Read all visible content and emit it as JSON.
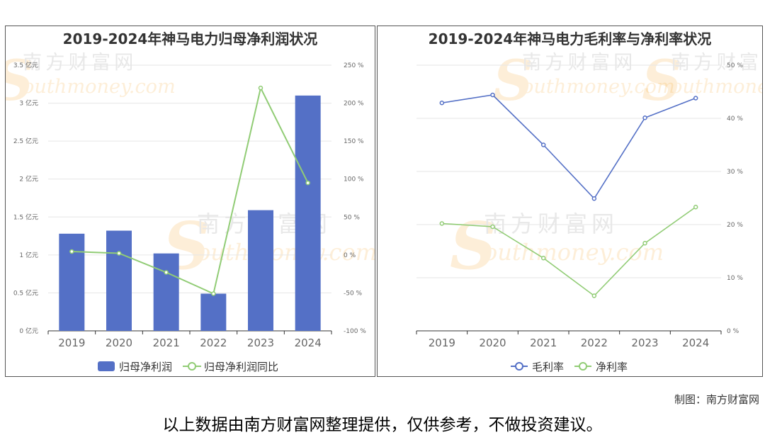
{
  "colors": {
    "blue": "#5470c6",
    "green": "#91cc75",
    "grid": "#e6e6e6",
    "axis": "#333333",
    "text": "#666666"
  },
  "watermark": {
    "cn": "南方财富网",
    "en": "outhmoney.com"
  },
  "credit": "制图：南方财富网",
  "disclaimer": "以上数据由南方财富网整理提供，仅供参考，不做投资建议。",
  "chart_data": [
    {
      "type": "bar",
      "title": "2019-2024年神马电力归母净利润状况",
      "categories": [
        "2019",
        "2020",
        "2021",
        "2022",
        "2023",
        "2024"
      ],
      "series": [
        {
          "name": "归母净利润",
          "type": "bar",
          "axis": "left",
          "values": [
            1.28,
            1.32,
            1.02,
            0.49,
            1.59,
            3.1
          ]
        },
        {
          "name": "归母净利润同比",
          "type": "line",
          "axis": "right",
          "values": [
            4.5,
            2.2,
            -23,
            -51,
            220,
            95
          ]
        }
      ],
      "y_left": {
        "min": 0,
        "max": 3.5,
        "step": 0.5,
        "unit": "亿元",
        "ticks": [
          "0 亿元",
          "0.5 亿元",
          "1 亿元",
          "1.5 亿元",
          "2 亿元",
          "2.5 亿元",
          "3 亿元",
          "3.5 亿元"
        ]
      },
      "y_right": {
        "min": -100,
        "max": 250,
        "step": 50,
        "unit": "%",
        "ticks": [
          "-100 %",
          "-50 %",
          "0 %",
          "50 %",
          "100 %",
          "150 %",
          "200 %",
          "250 %"
        ]
      },
      "grid": true,
      "legend": "bottom-center"
    },
    {
      "type": "line",
      "title": "2019-2024年神马电力毛利率与净利率状况",
      "categories": [
        "2019",
        "2020",
        "2021",
        "2022",
        "2023",
        "2024"
      ],
      "series": [
        {
          "name": "毛利率",
          "values": [
            42.9,
            44.4,
            35,
            24.9,
            40.1,
            43.8
          ]
        },
        {
          "name": "净利率",
          "values": [
            20.2,
            19.6,
            13.7,
            6.6,
            16.5,
            23.3
          ]
        }
      ],
      "y_right": {
        "min": 0,
        "max": 50,
        "step": 10,
        "unit": "%",
        "ticks": [
          "0 %",
          "10 %",
          "20 %",
          "30 %",
          "40 %",
          "50 %"
        ]
      },
      "grid": true,
      "legend": "bottom-center"
    }
  ]
}
